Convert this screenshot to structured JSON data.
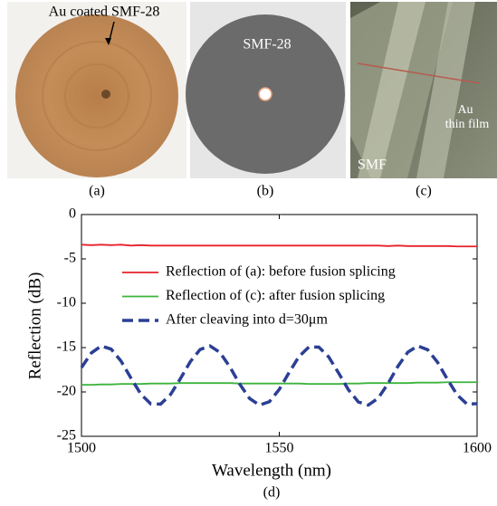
{
  "panels": [
    {
      "caption": "(a)",
      "labels": [
        "Au coated SMF-28"
      ]
    },
    {
      "caption": "(b)",
      "labels": [
        "SMF-28"
      ]
    },
    {
      "caption": "(c)",
      "labels": [
        "SMF",
        "Au",
        "thin film"
      ]
    },
    {
      "caption": "(d)"
    }
  ],
  "chart_data": {
    "type": "line",
    "x_label": "Wavelength (nm)",
    "y_label": "Reflection (dB)",
    "x": [
      1500,
      1502.5,
      1505,
      1507.5,
      1510,
      1512.5,
      1515,
      1517.5,
      1520,
      1522.5,
      1525,
      1527.5,
      1530,
      1532.5,
      1535,
      1537.5,
      1540,
      1542.5,
      1545,
      1547.5,
      1550,
      1552.5,
      1555,
      1557.5,
      1560,
      1562.5,
      1565,
      1567.5,
      1570,
      1572.5,
      1575,
      1577.5,
      1580,
      1582.5,
      1585,
      1587.5,
      1590,
      1592.5,
      1595,
      1597.5,
      1600
    ],
    "series": [
      {
        "name": "Reflection of (a): before fusion splicing",
        "color": "#e8202a",
        "dashed": false,
        "values": [
          -3.4,
          -3.45,
          -3.4,
          -3.45,
          -3.4,
          -3.5,
          -3.45,
          -3.5,
          -3.5,
          -3.5,
          -3.5,
          -3.5,
          -3.5,
          -3.5,
          -3.5,
          -3.5,
          -3.5,
          -3.5,
          -3.5,
          -3.5,
          -3.5,
          -3.5,
          -3.5,
          -3.5,
          -3.5,
          -3.5,
          -3.5,
          -3.5,
          -3.5,
          -3.5,
          -3.5,
          -3.55,
          -3.5,
          -3.55,
          -3.55,
          -3.55,
          -3.55,
          -3.55,
          -3.6,
          -3.6,
          -3.6
        ]
      },
      {
        "name": "Reflection of (c): after fusion splicing",
        "color": "#3cb43c",
        "dashed": false,
        "values": [
          -19.2,
          -19.2,
          -19.15,
          -19.15,
          -19.1,
          -19.1,
          -19.1,
          -19.05,
          -19.05,
          -19.05,
          -19.0,
          -19.0,
          -19.0,
          -19.0,
          -19.0,
          -19.0,
          -19.05,
          -19.05,
          -19.05,
          -19.05,
          -19.05,
          -19.05,
          -19.05,
          -19.1,
          -19.1,
          -19.1,
          -19.1,
          -19.05,
          -19.05,
          -19.0,
          -19.0,
          -19.0,
          -19.0,
          -19.0,
          -18.95,
          -18.95,
          -18.95,
          -18.9,
          -18.9,
          -18.9,
          -18.9
        ]
      },
      {
        "name": "After cleaving into d=30μm",
        "color": "#2b3f94",
        "dashed": true,
        "values": [
          -17.25,
          -15.6,
          -14.82,
          -15.17,
          -16.52,
          -18.43,
          -20.24,
          -21.34,
          -21.37,
          -20.3,
          -18.51,
          -16.59,
          -15.21,
          -14.81,
          -15.55,
          -17.17,
          -19.12,
          -20.74,
          -21.48,
          -21.1,
          -19.71,
          -17.8,
          -16.0,
          -14.93,
          -14.95,
          -16.06,
          -17.87,
          -19.77,
          -21.13,
          -21.48,
          -20.7,
          -19.05,
          -17.1,
          -15.51,
          -14.81,
          -15.24,
          -16.65,
          -18.58,
          -20.35,
          -21.39,
          -21.32
        ]
      }
    ],
    "xlim": [
      1500,
      1600
    ],
    "xticks": [
      1500,
      1550,
      1600
    ],
    "ylim": [
      -25,
      0
    ],
    "yticks": [
      0,
      -5,
      -10,
      -15,
      -20,
      -25
    ],
    "grid": false,
    "legend": "upper center"
  }
}
